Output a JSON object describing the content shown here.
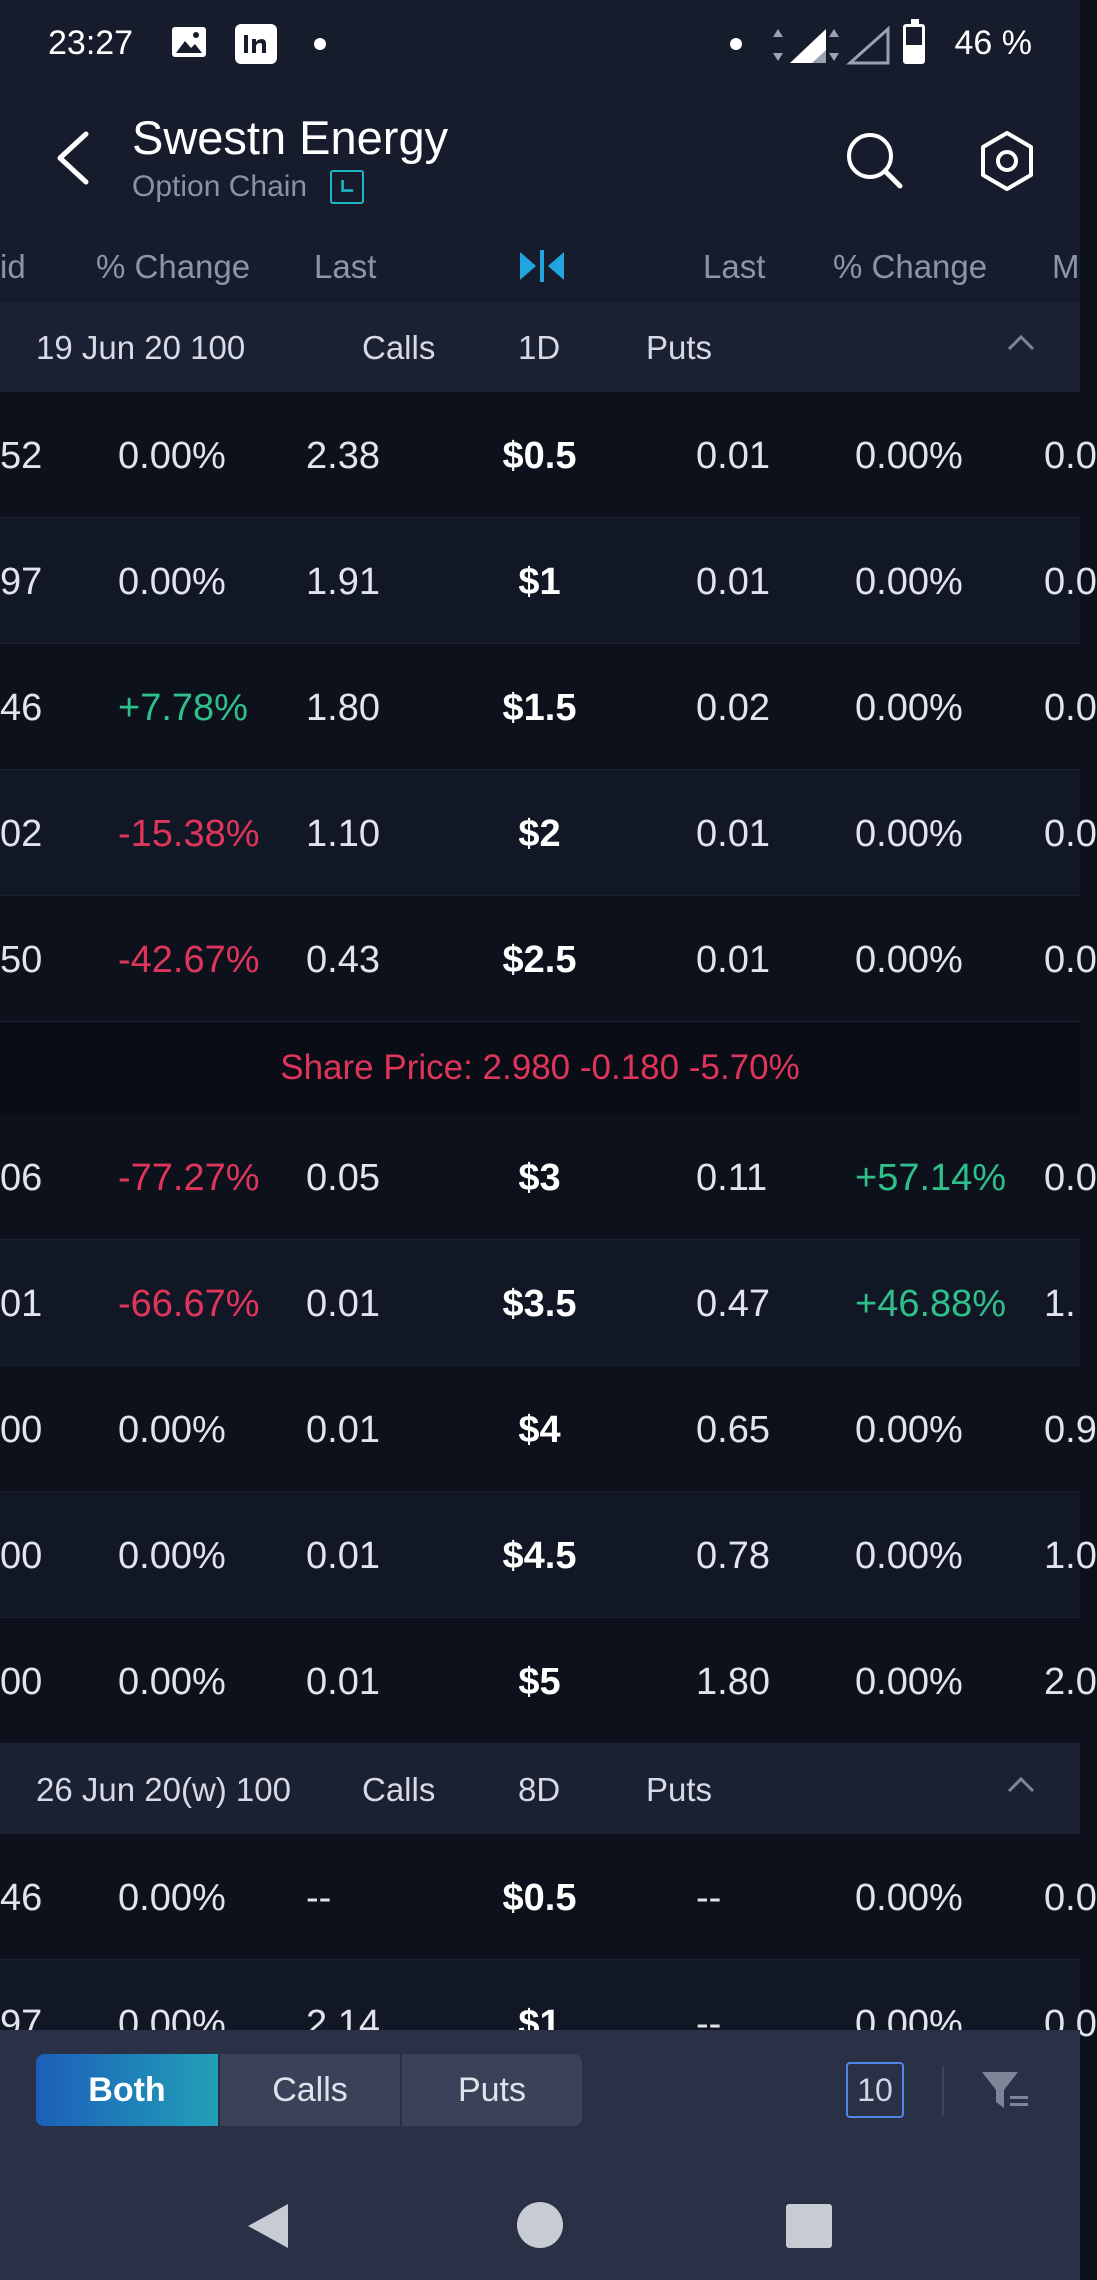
{
  "status_bar": {
    "time": "23:27",
    "battery": "46 %"
  },
  "header": {
    "title": "Swestn Energy",
    "subtitle": "Option Chain"
  },
  "columns": {
    "calls_bid": "id",
    "calls_change": "% Change",
    "calls_last": "Last",
    "puts_last": "Last",
    "puts_change": "% Change",
    "puts_more": "M"
  },
  "chain": {
    "expiry1": {
      "date": "19 Jun 20 100",
      "calls": "Calls",
      "days": "1D",
      "puts": "Puts"
    },
    "expiry2": {
      "date": "26 Jun 20(w) 100",
      "calls": "Calls",
      "days": "8D",
      "puts": "Puts"
    },
    "share_price": "Share Price: 2.980 -0.180 -5.70%",
    "rows": [
      {
        "bid": "52",
        "c_change": "0.00%",
        "c_last": "2.38",
        "strike": "$0.5",
        "p_last": "0.01",
        "p_change": "0.00%",
        "p_more": "0.0"
      },
      {
        "bid": "97",
        "c_change": "0.00%",
        "c_last": "1.91",
        "strike": "$1",
        "p_last": "0.01",
        "p_change": "0.00%",
        "p_more": "0.0"
      },
      {
        "bid": "46",
        "c_change": "+7.78%",
        "c_last": "1.80",
        "strike": "$1.5",
        "p_last": "0.02",
        "p_change": "0.00%",
        "p_more": "0.0"
      },
      {
        "bid": "02",
        "c_change": "-15.38%",
        "c_last": "1.10",
        "strike": "$2",
        "p_last": "0.01",
        "p_change": "0.00%",
        "p_more": "0.0"
      },
      {
        "bid": "50",
        "c_change": "-42.67%",
        "c_last": "0.43",
        "strike": "$2.5",
        "p_last": "0.01",
        "p_change": "0.00%",
        "p_more": "0.0"
      },
      {
        "bid": "06",
        "c_change": "-77.27%",
        "c_last": "0.05",
        "strike": "$3",
        "p_last": "0.11",
        "p_change": "+57.14%",
        "p_more": "0.0"
      },
      {
        "bid": "01",
        "c_change": "-66.67%",
        "c_last": "0.01",
        "strike": "$3.5",
        "p_last": "0.47",
        "p_change": "+46.88%",
        "p_more": "1."
      },
      {
        "bid": "00",
        "c_change": "0.00%",
        "c_last": "0.01",
        "strike": "$4",
        "p_last": "0.65",
        "p_change": "0.00%",
        "p_more": "0.9"
      },
      {
        "bid": "00",
        "c_change": "0.00%",
        "c_last": "0.01",
        "strike": "$4.5",
        "p_last": "0.78",
        "p_change": "0.00%",
        "p_more": "1.0"
      },
      {
        "bid": "00",
        "c_change": "0.00%",
        "c_last": "0.01",
        "strike": "$5",
        "p_last": "1.80",
        "p_change": "0.00%",
        "p_more": "2.0"
      },
      {
        "bid": "46",
        "c_change": "0.00%",
        "c_last": "--",
        "strike": "$0.5",
        "p_last": "--",
        "p_change": "0.00%",
        "p_more": "0.0"
      },
      {
        "bid": "97",
        "c_change": "0.00%",
        "c_last": "2.14",
        "strike": "$1",
        "p_last": "--",
        "p_change": "0.00%",
        "p_more": "0.0"
      }
    ]
  },
  "bottom": {
    "both": "Both",
    "calls": "Calls",
    "puts": "Puts",
    "count": "10"
  },
  "colors": {
    "positive": "#2fbf8a",
    "negative": "#e0355a",
    "accent": "#1fa6e0",
    "background": "#0d111c"
  },
  "icons": [
    "back-arrow-icon",
    "clock-icon",
    "search-icon",
    "settings-icon",
    "center-strike-icon",
    "chevron-up-icon",
    "filter-icon"
  ]
}
